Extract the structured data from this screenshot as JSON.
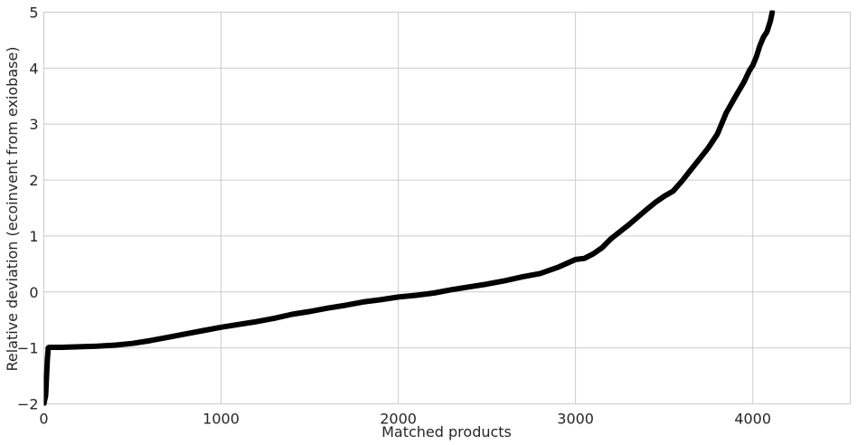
{
  "chart_data": {
    "type": "line",
    "title": "",
    "xlabel": "Matched products",
    "ylabel": "Relative deviation (ecoinvent from  exiobase)",
    "xlim": [
      0,
      4550
    ],
    "ylim": [
      -2,
      5
    ],
    "xticks": [
      0,
      1000,
      2000,
      3000,
      4000
    ],
    "yticks": [
      -2,
      -1,
      0,
      1,
      2,
      3,
      4,
      5
    ],
    "grid": true,
    "series": [
      {
        "color": "#000000",
        "x": [
          0,
          10,
          20,
          25,
          30,
          50,
          100,
          200,
          300,
          400,
          500,
          600,
          700,
          800,
          900,
          1000,
          1100,
          1200,
          1300,
          1400,
          1500,
          1600,
          1700,
          1800,
          1900,
          2000,
          2100,
          2200,
          2300,
          2400,
          2500,
          2600,
          2700,
          2800,
          2900,
          3000,
          3050,
          3100,
          3150,
          3200,
          3300,
          3400,
          3450,
          3500,
          3550,
          3600,
          3650,
          3700,
          3750,
          3800,
          3850,
          3900,
          3950,
          3980,
          4000,
          4020,
          4040,
          4060,
          4080,
          4100,
          4110
        ],
        "y": [
          -2.0,
          -1.85,
          -1.2,
          -1.0,
          -0.99,
          -0.99,
          -0.99,
          -0.98,
          -0.97,
          -0.95,
          -0.92,
          -0.87,
          -0.81,
          -0.75,
          -0.69,
          -0.63,
          -0.58,
          -0.53,
          -0.47,
          -0.4,
          -0.35,
          -0.29,
          -0.24,
          -0.18,
          -0.14,
          -0.09,
          -0.06,
          -0.02,
          0.04,
          0.09,
          0.14,
          0.2,
          0.27,
          0.33,
          0.44,
          0.58,
          0.6,
          0.68,
          0.79,
          0.95,
          1.2,
          1.47,
          1.6,
          1.71,
          1.8,
          1.98,
          2.18,
          2.38,
          2.58,
          2.82,
          3.2,
          3.48,
          3.75,
          3.95,
          4.05,
          4.2,
          4.4,
          4.55,
          4.65,
          4.85,
          5.0
        ]
      }
    ]
  }
}
